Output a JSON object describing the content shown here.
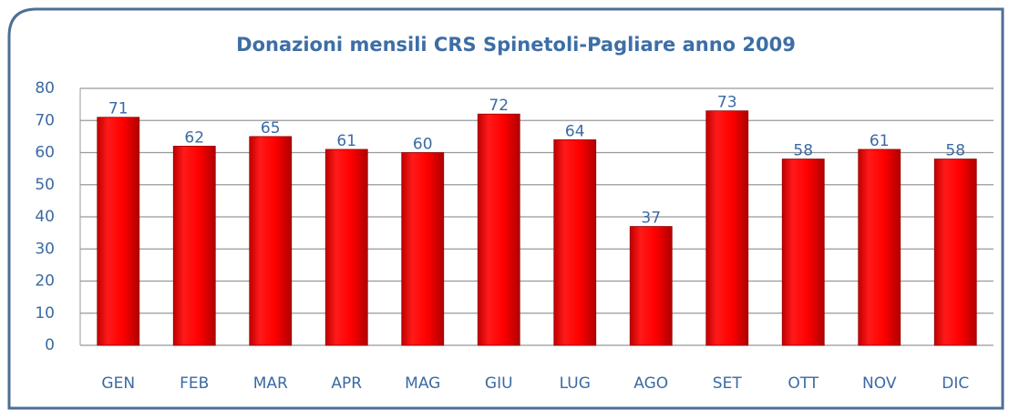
{
  "chart_data": {
    "type": "bar",
    "title": "Donazioni mensili CRS Spinetoli-Pagliare anno 2009",
    "categories": [
      "GEN",
      "FEB",
      "MAR",
      "APR",
      "MAG",
      "GIU",
      "LUG",
      "AGO",
      "SET",
      "OTT",
      "NOV",
      "DIC"
    ],
    "values": [
      71,
      62,
      65,
      61,
      60,
      72,
      64,
      37,
      73,
      58,
      61,
      58
    ],
    "color": "#ff0000",
    "ylim": [
      0,
      80
    ],
    "yticks": [
      0,
      10,
      20,
      30,
      40,
      50,
      60,
      70,
      80
    ],
    "grid": true
  }
}
